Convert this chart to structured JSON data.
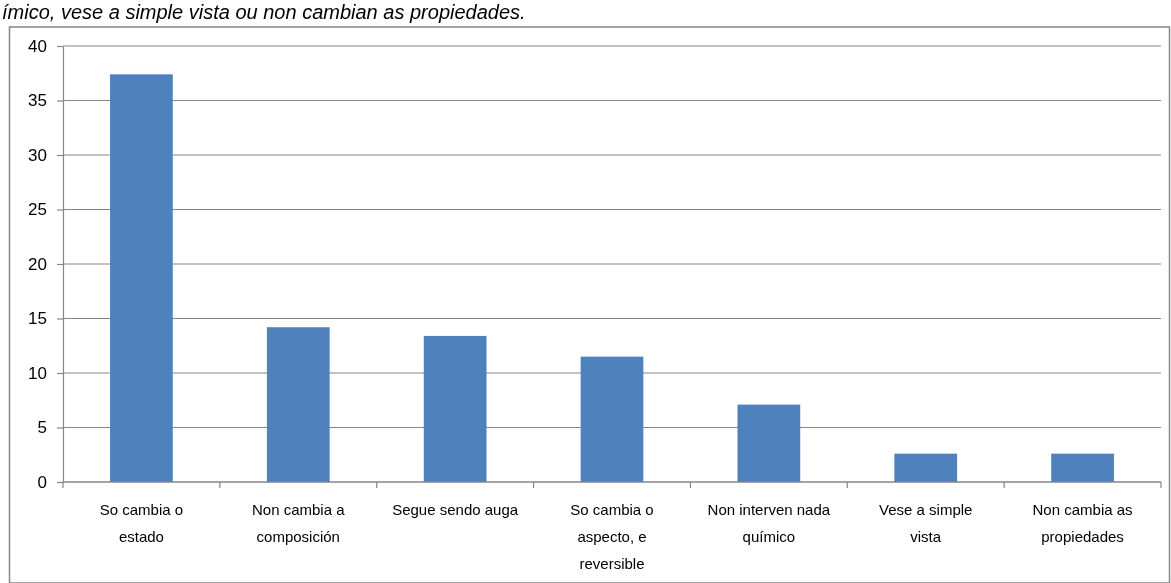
{
  "chart_data": {
    "type": "bar",
    "title": "ímico, vese a simple vista ou non cambian as propiedades.",
    "categories": [
      "So cambia o estado",
      "Non cambia a composición",
      "Segue sendo auga",
      "So cambia o aspecto, e reversible",
      "Non interven nada químico",
      "Vese a simple vista",
      "Non cambia as propiedades"
    ],
    "values": [
      37.4,
      14.2,
      13.4,
      11.5,
      7.1,
      2.6,
      2.6
    ],
    "color": "#4f81bd",
    "ylim": [
      0,
      40
    ],
    "yticks": [
      0,
      5,
      10,
      15,
      20,
      25,
      30,
      35,
      40
    ],
    "grid": "y"
  }
}
